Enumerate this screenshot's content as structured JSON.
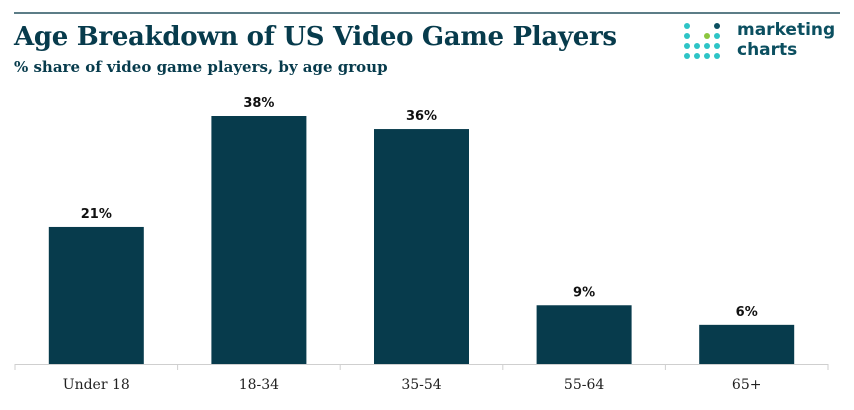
{
  "header": {
    "title": "Age Breakdown of US Video Game Players",
    "subtitle": "% share of video game players, by age group"
  },
  "logo": {
    "line1": "marketing",
    "line2": "charts",
    "dot_colors": [
      "#2ec4c6",
      "#8cc63f",
      "#0b4f60"
    ]
  },
  "colors": {
    "bar": "#073b4c",
    "text": "#073b4c",
    "axis": "#cfcfcf"
  },
  "chart_data": {
    "type": "bar",
    "categories": [
      "Under 18",
      "18-34",
      "35-54",
      "55-64",
      "65+"
    ],
    "values": [
      21,
      38,
      36,
      9,
      6
    ],
    "value_labels": [
      "21%",
      "38%",
      "36%",
      "9%",
      "6%"
    ],
    "title": "Age Breakdown of US Video Game Players",
    "subtitle": "% share of video game players, by age group",
    "xlabel": "",
    "ylabel": "",
    "ylim": [
      0,
      40
    ],
    "grid": false,
    "legend": "none"
  }
}
